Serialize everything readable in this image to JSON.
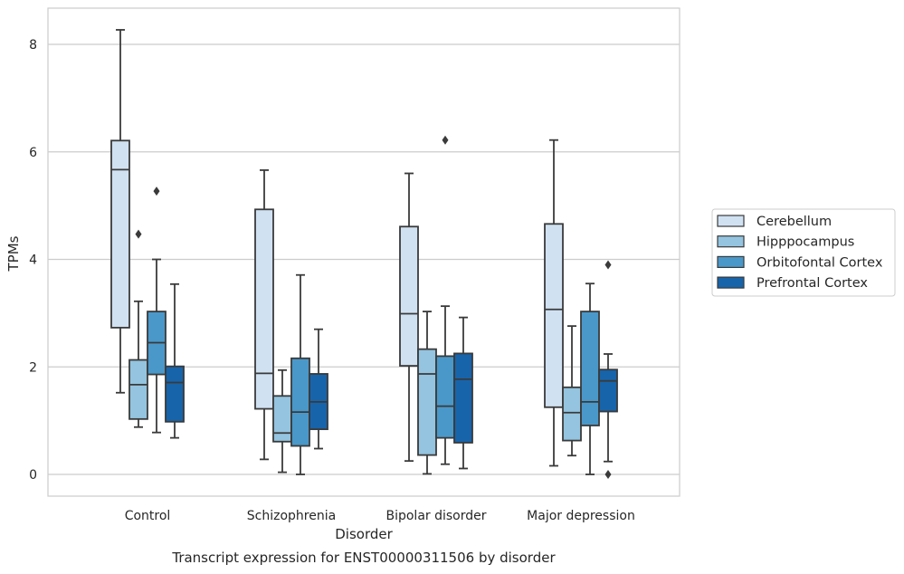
{
  "chart_data": {
    "type": "boxplot",
    "title": "Transcript expression for ENST00000311506 by disorder",
    "xlabel": "Disorder",
    "ylabel": "TPMs",
    "ylim": [
      -0.4,
      8.7
    ],
    "yticks": [
      0,
      2,
      4,
      6,
      8
    ],
    "grid": "horizontal",
    "legend_position": "right",
    "categories": [
      "Control",
      "Schizophrenia",
      "Bipolar disorder",
      "Major depression"
    ],
    "series": [
      {
        "name": "Cerebellum",
        "color": "#d0e1f2",
        "boxes": [
          {
            "whislo": 1.52,
            "q1": 2.73,
            "med": 5.67,
            "q3": 6.21,
            "whishi": 8.27,
            "fliers": []
          },
          {
            "whislo": 0.28,
            "q1": 1.22,
            "med": 1.88,
            "q3": 4.93,
            "whishi": 5.66,
            "fliers": []
          },
          {
            "whislo": 0.25,
            "q1": 2.02,
            "med": 2.99,
            "q3": 4.61,
            "whishi": 5.6,
            "fliers": []
          },
          {
            "whislo": 0.16,
            "q1": 1.25,
            "med": 3.07,
            "q3": 4.66,
            "whishi": 6.22,
            "fliers": []
          }
        ]
      },
      {
        "name": "Hipppocampus",
        "color": "#94c4df",
        "boxes": [
          {
            "whislo": 0.88,
            "q1": 1.03,
            "med": 1.67,
            "q3": 2.13,
            "whishi": 3.22,
            "fliers": [
              4.47
            ]
          },
          {
            "whislo": 0.04,
            "q1": 0.61,
            "med": 0.77,
            "q3": 1.46,
            "whishi": 1.94,
            "fliers": []
          },
          {
            "whislo": 0.01,
            "q1": 0.36,
            "med": 1.87,
            "q3": 2.33,
            "whishi": 3.03,
            "fliers": []
          },
          {
            "whislo": 0.35,
            "q1": 0.63,
            "med": 1.15,
            "q3": 1.62,
            "whishi": 2.76,
            "fliers": []
          }
        ]
      },
      {
        "name": "Orbitofontal Cortex",
        "color": "#4a98c9",
        "boxes": [
          {
            "whislo": 0.78,
            "q1": 1.86,
            "med": 2.45,
            "q3": 3.03,
            "whishi": 4.0,
            "fliers": [
              5.27
            ]
          },
          {
            "whislo": 0.0,
            "q1": 0.53,
            "med": 1.16,
            "q3": 2.16,
            "whishi": 3.71,
            "fliers": []
          },
          {
            "whislo": 0.19,
            "q1": 0.68,
            "med": 1.27,
            "q3": 2.2,
            "whishi": 3.13,
            "fliers": [
              6.22
            ]
          },
          {
            "whislo": 0.0,
            "q1": 0.91,
            "med": 1.35,
            "q3": 3.03,
            "whishi": 3.55,
            "fliers": []
          }
        ]
      },
      {
        "name": "Prefrontal Cortex",
        "color": "#1764ab",
        "boxes": [
          {
            "whislo": 0.68,
            "q1": 0.98,
            "med": 1.71,
            "q3": 2.01,
            "whishi": 3.54,
            "fliers": []
          },
          {
            "whislo": 0.48,
            "q1": 0.84,
            "med": 1.35,
            "q3": 1.87,
            "whishi": 2.7,
            "fliers": []
          },
          {
            "whislo": 0.11,
            "q1": 0.59,
            "med": 1.77,
            "q3": 2.25,
            "whishi": 2.92,
            "fliers": []
          },
          {
            "whislo": 0.24,
            "q1": 1.17,
            "med": 1.74,
            "q3": 1.95,
            "whishi": 2.24,
            "fliers": [
              3.9,
              0.0
            ]
          }
        ]
      }
    ]
  }
}
